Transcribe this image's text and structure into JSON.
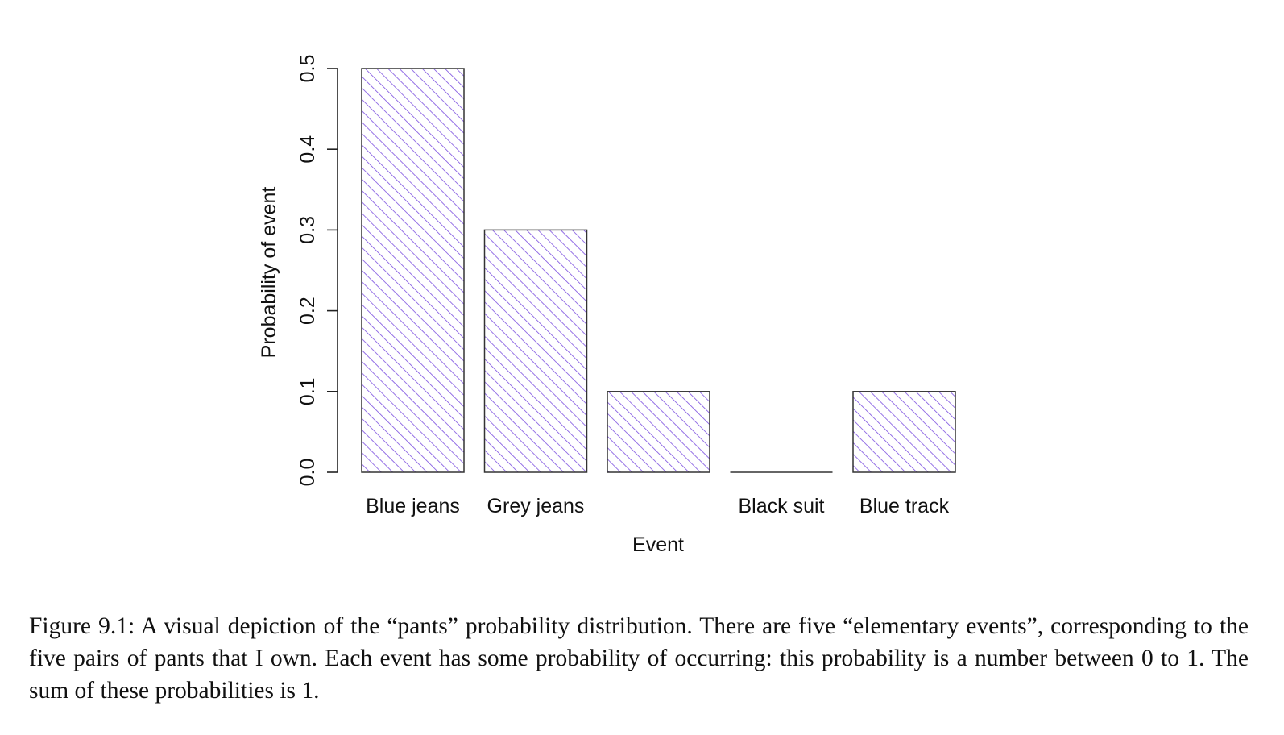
{
  "chart_data": {
    "type": "bar",
    "categories": [
      "Blue jeans",
      "Grey jeans",
      "",
      "Black suit",
      "Blue track"
    ],
    "values": [
      0.5,
      0.3,
      0.1,
      0.0,
      0.1
    ],
    "xlabel": "Event",
    "ylabel": "Probability of event",
    "ylim": [
      0,
      0.5
    ],
    "yticks": [
      "0.0",
      "0.1",
      "0.2",
      "0.3",
      "0.4",
      "0.5"
    ],
    "fill": "diagonal hatch",
    "hatch_color": "#7b4fe0",
    "border_color": "#333333"
  },
  "caption": "Figure 9.1: A visual depiction of the “pants” probability distribution. There are five “elementary events”, corresponding to the five pairs of pants that I own. Each event has some probability of occurring: this probability is a number between 0 to 1. The sum of these probabilities is 1."
}
